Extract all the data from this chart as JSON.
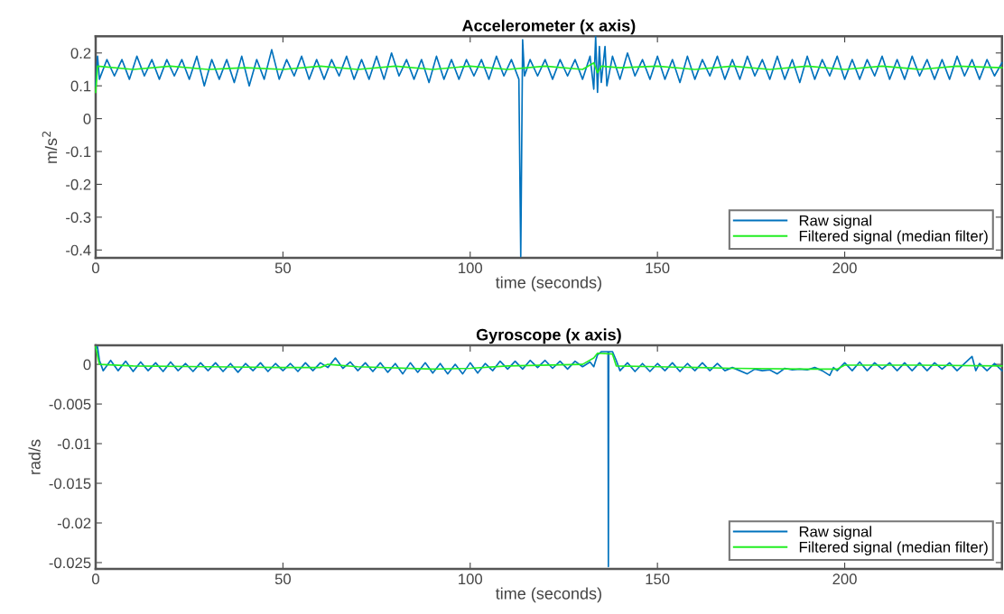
{
  "chart_data": [
    {
      "type": "line",
      "title": "Accelerometer (x axis)",
      "xlabel": "time (seconds)",
      "ylabel": "m/s$^{2}$",
      "xlim": [
        0,
        242
      ],
      "xticks": [
        0,
        50,
        100,
        150,
        200
      ],
      "ylim": [
        -0.424,
        0.251
      ],
      "yticks": [
        -0.4,
        -0.3,
        -0.2,
        -0.1,
        0,
        0.1,
        0.2
      ],
      "legend": "bottom right",
      "grid": false,
      "line_style": "solid",
      "series": [
        {
          "name": "Raw signal",
          "color": "#0072bd",
          "x": [
            0,
            0.5,
            1,
            3,
            5,
            7,
            9,
            11,
            13,
            15,
            17,
            19,
            21,
            23,
            25,
            27,
            29,
            31,
            33,
            35,
            37,
            39,
            41,
            43,
            45,
            47,
            49,
            51,
            53,
            55,
            57,
            59,
            61,
            63,
            65,
            67,
            69,
            71,
            73,
            75,
            77,
            79,
            81,
            83,
            85,
            87,
            89,
            91,
            93,
            95,
            97,
            99,
            101,
            103,
            105,
            107,
            109,
            111,
            113,
            113.5,
            114,
            114.5,
            116,
            118,
            120,
            122,
            124,
            126,
            128,
            130,
            132,
            133,
            133.5,
            134,
            134.5,
            135,
            136,
            136.5,
            138,
            140,
            142,
            144,
            146,
            148,
            150,
            152,
            154,
            156,
            158,
            160,
            162,
            164,
            166,
            168,
            170,
            172,
            174,
            176,
            178,
            180,
            182,
            184,
            186,
            188,
            190,
            192,
            194,
            196,
            198,
            200,
            202,
            204,
            206,
            208,
            210,
            212,
            214,
            216,
            218,
            220,
            222,
            224,
            226,
            228,
            230,
            232,
            234,
            236,
            238,
            240,
            242
          ],
          "values": [
            0.1,
            0.19,
            0.12,
            0.18,
            0.13,
            0.18,
            0.12,
            0.19,
            0.13,
            0.18,
            0.12,
            0.18,
            0.13,
            0.18,
            0.12,
            0.19,
            0.1,
            0.18,
            0.12,
            0.18,
            0.11,
            0.19,
            0.1,
            0.18,
            0.12,
            0.21,
            0.12,
            0.18,
            0.13,
            0.19,
            0.12,
            0.18,
            0.12,
            0.18,
            0.13,
            0.19,
            0.12,
            0.18,
            0.12,
            0.19,
            0.12,
            0.2,
            0.13,
            0.18,
            0.12,
            0.18,
            0.11,
            0.19,
            0.12,
            0.18,
            0.12,
            0.18,
            0.13,
            0.18,
            0.12,
            0.19,
            0.13,
            0.18,
            0.12,
            -0.42,
            0.24,
            0.13,
            0.18,
            0.13,
            0.18,
            0.12,
            0.18,
            0.13,
            0.18,
            0.12,
            0.19,
            0.09,
            0.25,
            0.08,
            0.22,
            0.11,
            0.22,
            0.1,
            0.19,
            0.12,
            0.2,
            0.13,
            0.18,
            0.12,
            0.19,
            0.12,
            0.18,
            0.11,
            0.19,
            0.12,
            0.18,
            0.13,
            0.19,
            0.12,
            0.18,
            0.12,
            0.19,
            0.13,
            0.18,
            0.12,
            0.19,
            0.12,
            0.18,
            0.11,
            0.19,
            0.12,
            0.18,
            0.13,
            0.19,
            0.12,
            0.18,
            0.12,
            0.18,
            0.13,
            0.19,
            0.12,
            0.18,
            0.12,
            0.19,
            0.13,
            0.18,
            0.12,
            0.18,
            0.12,
            0.19,
            0.13,
            0.18,
            0.12,
            0.18,
            0.13,
            0.17
          ]
        },
        {
          "name": "Filtered signal (median filter)",
          "color": "#22ee22",
          "x": [
            0,
            0.5,
            10,
            20,
            30,
            40,
            50,
            60,
            70,
            80,
            90,
            100,
            110,
            120,
            130,
            133,
            134,
            135,
            140,
            150,
            160,
            170,
            180,
            190,
            200,
            210,
            220,
            230,
            242
          ],
          "values": [
            0.08,
            0.16,
            0.15,
            0.16,
            0.15,
            0.155,
            0.15,
            0.16,
            0.15,
            0.16,
            0.15,
            0.16,
            0.15,
            0.16,
            0.15,
            0.17,
            0.14,
            0.16,
            0.155,
            0.16,
            0.15,
            0.16,
            0.15,
            0.16,
            0.15,
            0.16,
            0.15,
            0.16,
            0.155
          ]
        }
      ]
    },
    {
      "type": "line",
      "title": "Gyroscope (x axis)",
      "xlabel": "time (seconds)",
      "ylabel": "rad/s",
      "xlim": [
        0,
        242
      ],
      "xticks": [
        0,
        50,
        100,
        150,
        200
      ],
      "ylim": [
        -0.0258,
        0.0024
      ],
      "yticks": [
        -0.025,
        -0.02,
        -0.015,
        -0.01,
        -0.005,
        0
      ],
      "legend": "bottom right",
      "grid": false,
      "line_style": "solid",
      "series": [
        {
          "name": "Raw signal",
          "color": "#0072bd",
          "x": [
            0,
            0.5,
            1,
            2,
            4,
            6,
            8,
            10,
            12,
            14,
            16,
            18,
            20,
            22,
            24,
            26,
            28,
            30,
            32,
            34,
            36,
            38,
            40,
            42,
            44,
            46,
            48,
            50,
            52,
            54,
            56,
            58,
            60,
            62,
            64,
            66,
            68,
            70,
            72,
            74,
            76,
            78,
            80,
            82,
            84,
            86,
            88,
            90,
            92,
            94,
            96,
            98,
            100,
            102,
            104,
            106,
            108,
            110,
            112,
            114,
            116,
            118,
            120,
            122,
            124,
            126,
            128,
            130,
            132,
            133,
            134,
            135,
            136,
            136.8,
            136.9,
            137,
            138,
            139,
            140,
            142,
            144,
            146,
            148,
            150,
            152,
            154,
            156,
            158,
            160,
            162,
            164,
            166,
            168,
            170,
            172,
            174,
            176,
            178,
            180,
            182,
            184,
            186,
            188,
            190,
            192,
            194,
            196,
            197,
            198,
            200,
            202,
            204,
            206,
            208,
            210,
            212,
            214,
            216,
            218,
            220,
            222,
            224,
            226,
            228,
            230,
            232,
            234,
            235,
            236,
            238,
            240,
            242
          ],
          "values": [
            0.002,
            0.0022,
            0.0005,
            -0.0008,
            0.0005,
            -0.0008,
            0.0004,
            -0.0009,
            0.0003,
            -0.0008,
            0.0002,
            -0.0009,
            0.0003,
            -0.0008,
            0.0001,
            -0.0009,
            0.0002,
            -0.0008,
            0.0002,
            -0.0009,
            0.0001,
            -0.001,
            0.0001,
            -0.0008,
            0.0002,
            -0.0009,
            0.0001,
            -0.0008,
            0.0001,
            -0.0009,
            0.0002,
            -0.0008,
            0.0002,
            -0.0004,
            0.0008,
            -0.0005,
            0.0003,
            -0.0008,
            0.0002,
            -0.0009,
            0.0002,
            -0.001,
            0.0001,
            -0.0012,
            0.0002,
            -0.001,
            0.0002,
            -0.0011,
            0.0001,
            -0.0012,
            0.0,
            -0.0012,
            0.0002,
            -0.0011,
            0.0001,
            -0.0008,
            0.0004,
            -0.0006,
            0.0004,
            -0.0006,
            0.0005,
            -0.0004,
            0.0005,
            -0.0005,
            0.0004,
            -0.0006,
            0.0004,
            -0.0003,
            0.0003,
            -0.0003,
            0.0012,
            0.0016,
            0.0016,
            0.0016,
            -0.0255,
            0.0016,
            0.0016,
            0.0005,
            -0.0008,
            0.0002,
            -0.0009,
            0.0001,
            -0.0009,
            0.0001,
            -0.0008,
            0.0002,
            -0.0009,
            0.0001,
            -0.0008,
            0.0002,
            -0.0008,
            0.0001,
            -0.0008,
            -0.0004,
            -0.0008,
            -0.0012,
            -0.0006,
            -0.0008,
            -0.0007,
            -0.0012,
            -0.0005,
            -0.0007,
            -0.0006,
            -0.0007,
            -0.0004,
            -0.0008,
            -0.0014,
            -0.0004,
            -0.0008,
            0.0002,
            -0.0008,
            0.0003,
            -0.0008,
            0.0002,
            -0.0006,
            0.0002,
            -0.0008,
            0.0002,
            -0.0008,
            0.0002,
            -0.0008,
            0.0002,
            -0.0006,
            0.0002,
            -0.0008,
            0.0001,
            0.001,
            -0.0008,
            0.0001,
            -0.0008,
            0.0001,
            -0.0008
          ]
        },
        {
          "name": "Filtered signal (median filter)",
          "color": "#22ee22",
          "x": [
            0,
            1,
            10,
            30,
            50,
            60,
            62,
            70,
            90,
            100,
            110,
            130,
            133,
            134,
            138,
            139,
            150,
            170,
            190,
            198,
            200,
            220,
            242
          ],
          "values": [
            0.0022,
            0.0,
            -0.0002,
            -0.0003,
            -0.0004,
            -0.0004,
            0.0,
            -0.0003,
            -0.0006,
            -0.0005,
            -0.0002,
            0.0,
            0.0008,
            0.0014,
            0.0013,
            -0.0002,
            -0.0003,
            -0.0005,
            -0.0006,
            -0.0006,
            -0.0001,
            -0.0001,
            -0.0002
          ]
        }
      ]
    }
  ]
}
